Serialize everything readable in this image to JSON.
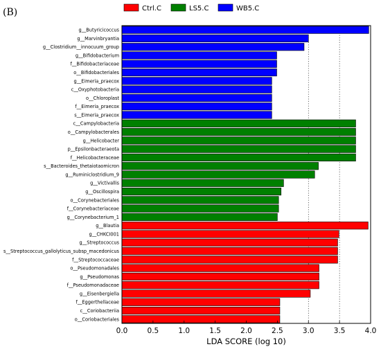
{
  "panel_label": "(B)",
  "chart_data": {
    "type": "bar",
    "orientation": "horizontal",
    "xlabel": "LDA SCORE (log 10)",
    "xlim": [
      0.0,
      4.0
    ],
    "xticks": [
      "0.0",
      "0.5",
      "1.0",
      "1.5",
      "2.0",
      "2.5",
      "3.0",
      "3.5",
      "4.0"
    ],
    "grid": "dotted vertical at 3.0, 3.5 and 4.0",
    "legend_position": "top",
    "series": [
      {
        "name": "Ctrl.C",
        "color": "#ff0000",
        "bars": [
          {
            "label": "g__Blautia",
            "value": 3.96
          },
          {
            "label": "g__CHKCI001",
            "value": 3.49
          },
          {
            "label": "g__Streptococcus",
            "value": 3.47
          },
          {
            "label": "s__Streptococcus_gallolyticus_subsp_macedonicus",
            "value": 3.47
          },
          {
            "label": "f__Streptococcaceae",
            "value": 3.47
          },
          {
            "label": "o__Pseudomonadales",
            "value": 3.17
          },
          {
            "label": "g__Pseudomonas",
            "value": 3.17
          },
          {
            "label": "f__Pseudomonadaceae",
            "value": 3.17
          },
          {
            "label": "g__Eisenbergiella",
            "value": 3.03
          },
          {
            "label": "f__Eggerthellaceae",
            "value": 2.54
          },
          {
            "label": "c__Coriobacteriia",
            "value": 2.54
          },
          {
            "label": "o__Coriobacteriales",
            "value": 2.54
          }
        ]
      },
      {
        "name": "LS5.C",
        "color": "#008000",
        "bars": [
          {
            "label": "c__Campylobacteria",
            "value": 3.76
          },
          {
            "label": "o__Campylobacterales",
            "value": 3.76
          },
          {
            "label": "g__Helicobacter",
            "value": 3.76
          },
          {
            "label": "p__Epsilonbacteraeota",
            "value": 3.76
          },
          {
            "label": "f__Helicobacteraceae",
            "value": 3.76
          },
          {
            "label": "s__Bacteroides_thetaiotaomicron",
            "value": 3.16
          },
          {
            "label": "g__Ruminiclostridium_9",
            "value": 3.1
          },
          {
            "label": "g__Victivallis",
            "value": 2.6
          },
          {
            "label": "g__Oscillospira",
            "value": 2.56
          },
          {
            "label": "o__Corynebacteriales",
            "value": 2.52
          },
          {
            "label": "f__Corynebacteriaceae",
            "value": 2.52
          },
          {
            "label": "g__Corynebacterium_1",
            "value": 2.5
          }
        ]
      },
      {
        "name": "WB5.C",
        "color": "#0000ff",
        "bars": [
          {
            "label": "g__Butyricicoccus",
            "value": 3.97
          },
          {
            "label": "g__Marvinbryantia",
            "value": 3.0
          },
          {
            "label": "g__Clostridium__innocuum_group",
            "value": 2.93
          },
          {
            "label": "g__Bifidobacterium",
            "value": 2.49
          },
          {
            "label": "f__Bifidobacteriaceae",
            "value": 2.49
          },
          {
            "label": "o__Bifidobacteriales",
            "value": 2.49
          },
          {
            "label": "g__Eimeria_praecox",
            "value": 2.41
          },
          {
            "label": "c__Oxyphotobacteria",
            "value": 2.41
          },
          {
            "label": "o__Chloroplast",
            "value": 2.41
          },
          {
            "label": "f__Eimeria_praecox",
            "value": 2.41
          },
          {
            "label": "s__Eimeria_praecox",
            "value": 2.41
          }
        ]
      }
    ],
    "display_order": [
      "WB5.C",
      "LS5.C",
      "Ctrl.C"
    ]
  }
}
